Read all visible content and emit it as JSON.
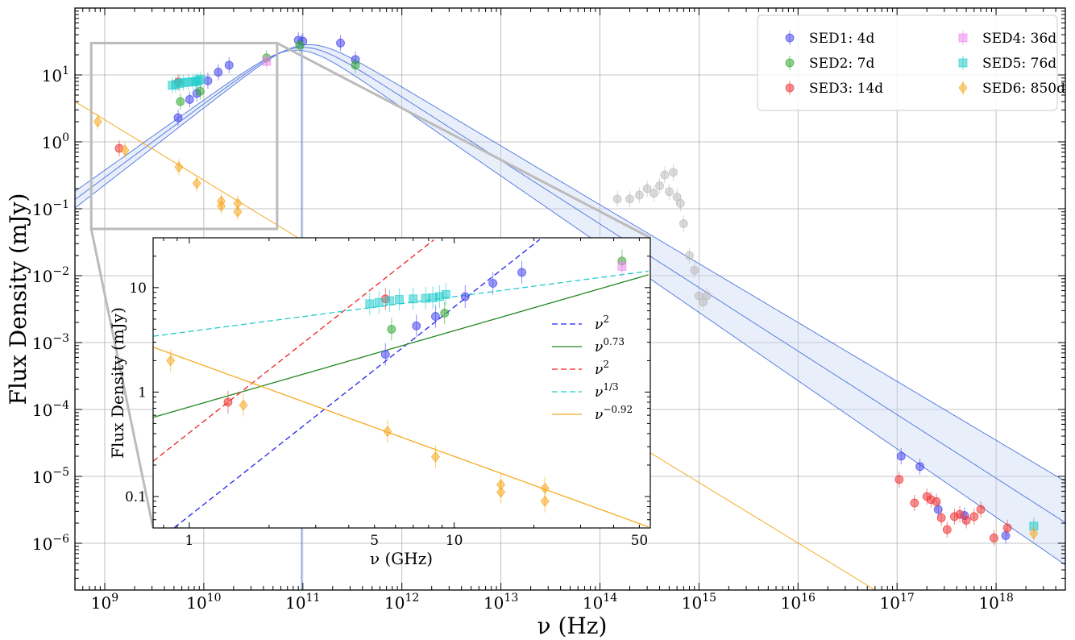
{
  "chart_data": [
    {
      "type": "scatter",
      "panel": "main",
      "xlabel": "ν (Hz)",
      "ylabel": "Flux Density (mJy)",
      "xscale": "log",
      "yscale": "log",
      "xlim": [
        500000000.0,
        5e+18
      ],
      "ylim": [
        2e-07,
        100
      ],
      "grid": true,
      "legend_position": "top-right",
      "x_ticks": [
        {
          "value": 1000000000.0,
          "base": "10",
          "exp": "9"
        },
        {
          "value": 10000000000.0,
          "base": "10",
          "exp": "10"
        },
        {
          "value": 100000000000.0,
          "base": "10",
          "exp": "11"
        },
        {
          "value": 1000000000000.0,
          "base": "10",
          "exp": "12"
        },
        {
          "value": 10000000000000.0,
          "base": "10",
          "exp": "13"
        },
        {
          "value": 100000000000000.0,
          "base": "10",
          "exp": "14"
        },
        {
          "value": 1000000000000000.0,
          "base": "10",
          "exp": "15"
        },
        {
          "value": 1e+16,
          "base": "10",
          "exp": "16"
        },
        {
          "value": 1e+17,
          "base": "10",
          "exp": "17"
        },
        {
          "value": 1e+18,
          "base": "10",
          "exp": "18"
        }
      ],
      "y_ticks": [
        {
          "value": 1e-06,
          "base": "10",
          "exp": "−6"
        },
        {
          "value": 1e-05,
          "base": "10",
          "exp": "−5"
        },
        {
          "value": 0.0001,
          "base": "10",
          "exp": "−4"
        },
        {
          "value": 0.001,
          "base": "10",
          "exp": "−3"
        },
        {
          "value": 0.01,
          "base": "10",
          "exp": "−2"
        },
        {
          "value": 0.1,
          "base": "10",
          "exp": "−1"
        },
        {
          "value": 1,
          "base": "10",
          "exp": "0"
        },
        {
          "value": 10,
          "base": "10",
          "exp": "1"
        }
      ],
      "series": [
        {
          "name": "SED1: 4d",
          "color": "#4444ee",
          "marker": "circle",
          "x": [
            5500000000.0,
            7200000000.0,
            8500000000.0,
            11000000000.0,
            14000000000.0,
            18000000000.0,
            90000000000.0,
            100000000000.0,
            240000000000.0,
            340000000000.0,
            1.1e+17,
            1.7e+17,
            2.6e+17,
            4.8e+17,
            1.25e+18
          ],
          "y": [
            2.3,
            4.3,
            5.3,
            8.2,
            11,
            14,
            33,
            32,
            30,
            17,
            2e-05,
            1.4e-05,
            3.2e-06,
            2.6e-06,
            1.3e-06
          ]
        },
        {
          "name": "SED2: 7d",
          "color": "#33aa33",
          "marker": "circle",
          "x": [
            5800000000.0,
            9200000000.0,
            43000000000.0,
            93000000000.0,
            340000000000.0
          ],
          "y": [
            4,
            5.7,
            18,
            28,
            14
          ]
        },
        {
          "name": "SED3: 14d",
          "color": "#ee3333",
          "marker": "circle",
          "x": [
            1400000000.0,
            5500000000.0,
            1.05e+17,
            1.5e+17,
            2e+17,
            2.2e+17,
            2.5e+17,
            2.8e+17,
            3.2e+17,
            3.8e+17,
            4.3e+17,
            5e+17,
            6e+17,
            7e+17,
            9.5e+17,
            1.3e+18
          ],
          "y": [
            0.8,
            7.8,
            9e-06,
            4e-06,
            5e-06,
            4.5e-06,
            4.2e-06,
            2.4e-06,
            1.6e-06,
            2.5e-06,
            2.7e-06,
            2.2e-06,
            2.5e-06,
            3.2e-06,
            1.2e-06,
            1.7e-06
          ]
        },
        {
          "name": "SED4: 36d",
          "color": "#ee88ee",
          "marker": "square",
          "x": [
            43000000000.0
          ],
          "y": [
            16
          ]
        },
        {
          "name": "SED5: 76d",
          "color": "#22cccc",
          "marker": "square",
          "x": [
            4800000000.0,
            5200000000.0,
            5700000000.0,
            6200000000.0,
            7000000000.0,
            7800000000.0,
            8300000000.0,
            8800000000.0,
            9300000000.0,
            2.4e+18
          ],
          "y": [
            7,
            7.2,
            7.5,
            7.7,
            7.8,
            7.9,
            8,
            8.2,
            8.6,
            1.8e-06
          ]
        },
        {
          "name": "SED6: 850d",
          "color": "#f5aa22",
          "marker": "diamond",
          "x": [
            850000000.0,
            1600000000.0,
            5600000000.0,
            8500000000.0,
            15000000000.0,
            15000000000.0,
            22000000000.0,
            22000000000.0,
            2.4e+18
          ],
          "y": [
            2,
            0.75,
            0.42,
            0.24,
            0.13,
            0.11,
            0.12,
            0.09,
            1.4e-06
          ]
        },
        {
          "name": "",
          "color": "#bbbbbb",
          "marker": "circle",
          "x": [
            150000000000000.0,
            200000000000000.0,
            250000000000000.0,
            300000000000000.0,
            350000000000000.0,
            400000000000000.0,
            450000000000000.0,
            500000000000000.0,
            550000000000000.0,
            600000000000000.0,
            650000000000000.0,
            700000000000000.0,
            800000000000000.0,
            900000000000000.0,
            1000000000000000.0,
            1100000000000000.0,
            1200000000000000.0
          ],
          "y": [
            0.14,
            0.14,
            0.16,
            0.2,
            0.17,
            0.22,
            0.32,
            0.18,
            0.35,
            0.15,
            0.12,
            0.06,
            0.02,
            0.012,
            0.005,
            0.004,
            0.005
          ]
        }
      ]
    },
    {
      "type": "scatter",
      "panel": "inset",
      "xlabel": "ν (GHz)",
      "ylabel": "Flux Density (mJy)",
      "xscale": "log",
      "yscale": "log",
      "xlim": [
        0.73,
        55
      ],
      "ylim": [
        0.05,
        30
      ],
      "x_ticks": [
        {
          "value": 1,
          "label": "1"
        },
        {
          "value": 5,
          "label": "5"
        },
        {
          "value": 10,
          "label": "10"
        },
        {
          "value": 50,
          "label": "50"
        }
      ],
      "y_ticks": [
        {
          "value": 0.1,
          "label": "0.1"
        },
        {
          "value": 1,
          "label": "1"
        },
        {
          "value": 10,
          "label": "10"
        }
      ],
      "fits": [
        {
          "label": "ν2",
          "base": "ν",
          "exp": "2",
          "color": "#2222ee",
          "dashed": true,
          "anchor": [
            7,
            3.2
          ],
          "slope": 2
        },
        {
          "label": "ν0.73",
          "base": "ν",
          "exp": "0.73",
          "color": "#228822",
          "dashed": false,
          "anchor": [
            5.5,
            2.5
          ],
          "slope": 0.73
        },
        {
          "label": "ν2",
          "base": "ν",
          "exp": "2",
          "color": "#ee2222",
          "dashed": true,
          "anchor": [
            1.4,
            0.8
          ],
          "slope": 2
        },
        {
          "label": "ν1/3",
          "base": "ν",
          "exp": "1/3",
          "color": "#22cccc",
          "dashed": true,
          "anchor": [
            5,
            6.5
          ],
          "slope": 0.3333
        },
        {
          "label": "ν−0.92",
          "base": "ν",
          "exp": "−0.92",
          "color": "#f5aa22",
          "dashed": false,
          "anchor": [
            5.5,
            0.42
          ],
          "slope": -0.92
        }
      ]
    }
  ]
}
